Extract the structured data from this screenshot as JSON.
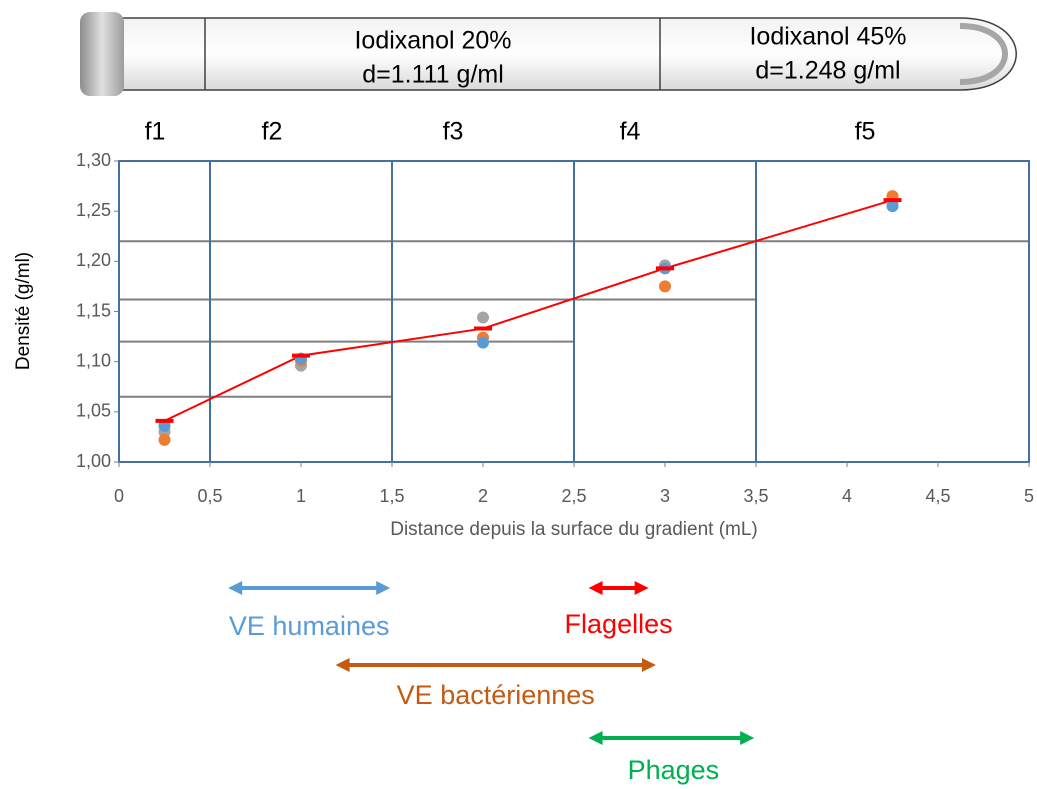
{
  "chart_data": {
    "type": "scatter",
    "tube": {
      "sections": [
        {
          "lines": [
            "Iodixanol 20%",
            "d=1.111 g/ml"
          ]
        },
        {
          "lines": [
            "Iodixanol 45%",
            "d=1.248 g/ml"
          ]
        }
      ]
    },
    "fractions": [
      "f1",
      "f2",
      "f3",
      "f4",
      "f5"
    ],
    "x_label": "Distance depuis la surface du gradient (mL)",
    "y_label": "Densité (g/ml)",
    "x": [
      0.25,
      1,
      2,
      3,
      4.25
    ],
    "series": [
      {
        "color": "#ff0000",
        "style": "line",
        "values": [
          1.041,
          1.106,
          1.133,
          1.193,
          1.261
        ]
      },
      {
        "color": "#5b9bd5",
        "values": [
          1.036,
          1.103,
          1.119,
          1.193,
          1.255
        ]
      },
      {
        "color": "#ed7d31",
        "values": [
          1.022,
          1.101,
          1.124,
          1.175,
          1.265
        ]
      },
      {
        "color": "#a5a5a5",
        "values": [
          1.03,
          1.096,
          1.144,
          1.196,
          1.259
        ]
      }
    ],
    "boundaries": [
      0.5,
      1.5,
      2.5,
      3.5
    ],
    "reference_lines": [
      {
        "y": 1.065,
        "x": [
          0,
          1.5
        ]
      },
      {
        "y": 1.12,
        "x": [
          0,
          2.5
        ]
      },
      {
        "y": 1.162,
        "x": [
          0,
          3.5
        ]
      },
      {
        "y": 1.22,
        "x": [
          0,
          5
        ]
      }
    ],
    "xlim": [
      0,
      5
    ],
    "ylim": [
      1.0,
      1.3
    ],
    "xticks": [
      0,
      {
        "value": 0.5,
        "label": "0,5"
      },
      1,
      {
        "value": 1.5,
        "label": "1,5"
      },
      2,
      {
        "value": 2.5,
        "label": "2,5"
      },
      3,
      {
        "value": 3.5,
        "label": "3,5"
      },
      4,
      {
        "value": 4.5,
        "label": "4,5"
      },
      5
    ],
    "yticks": [
      {
        "value": 1.0,
        "label": "1,00"
      },
      {
        "value": 1.05,
        "label": "1,05"
      },
      {
        "value": 1.1,
        "label": "1,10"
      },
      {
        "value": 1.15,
        "label": "1,15"
      },
      {
        "value": 1.2,
        "label": "1,20"
      },
      {
        "value": 1.25,
        "label": "1,25"
      },
      {
        "value": 1.3,
        "label": "1,30"
      }
    ],
    "annotations": [
      {
        "text": "VE humaines",
        "color": "#5b9bd5",
        "range": [
          0.6,
          1.49
        ]
      },
      {
        "text": "Flagelles",
        "color": "#ff0000",
        "range": [
          2.58,
          2.91
        ]
      },
      {
        "text": "VE bactériennes",
        "color": "#c55a11",
        "range": [
          1.19,
          2.95
        ]
      },
      {
        "text": "Phages",
        "color": "#00b050",
        "range": [
          2.58,
          3.49
        ]
      }
    ]
  }
}
